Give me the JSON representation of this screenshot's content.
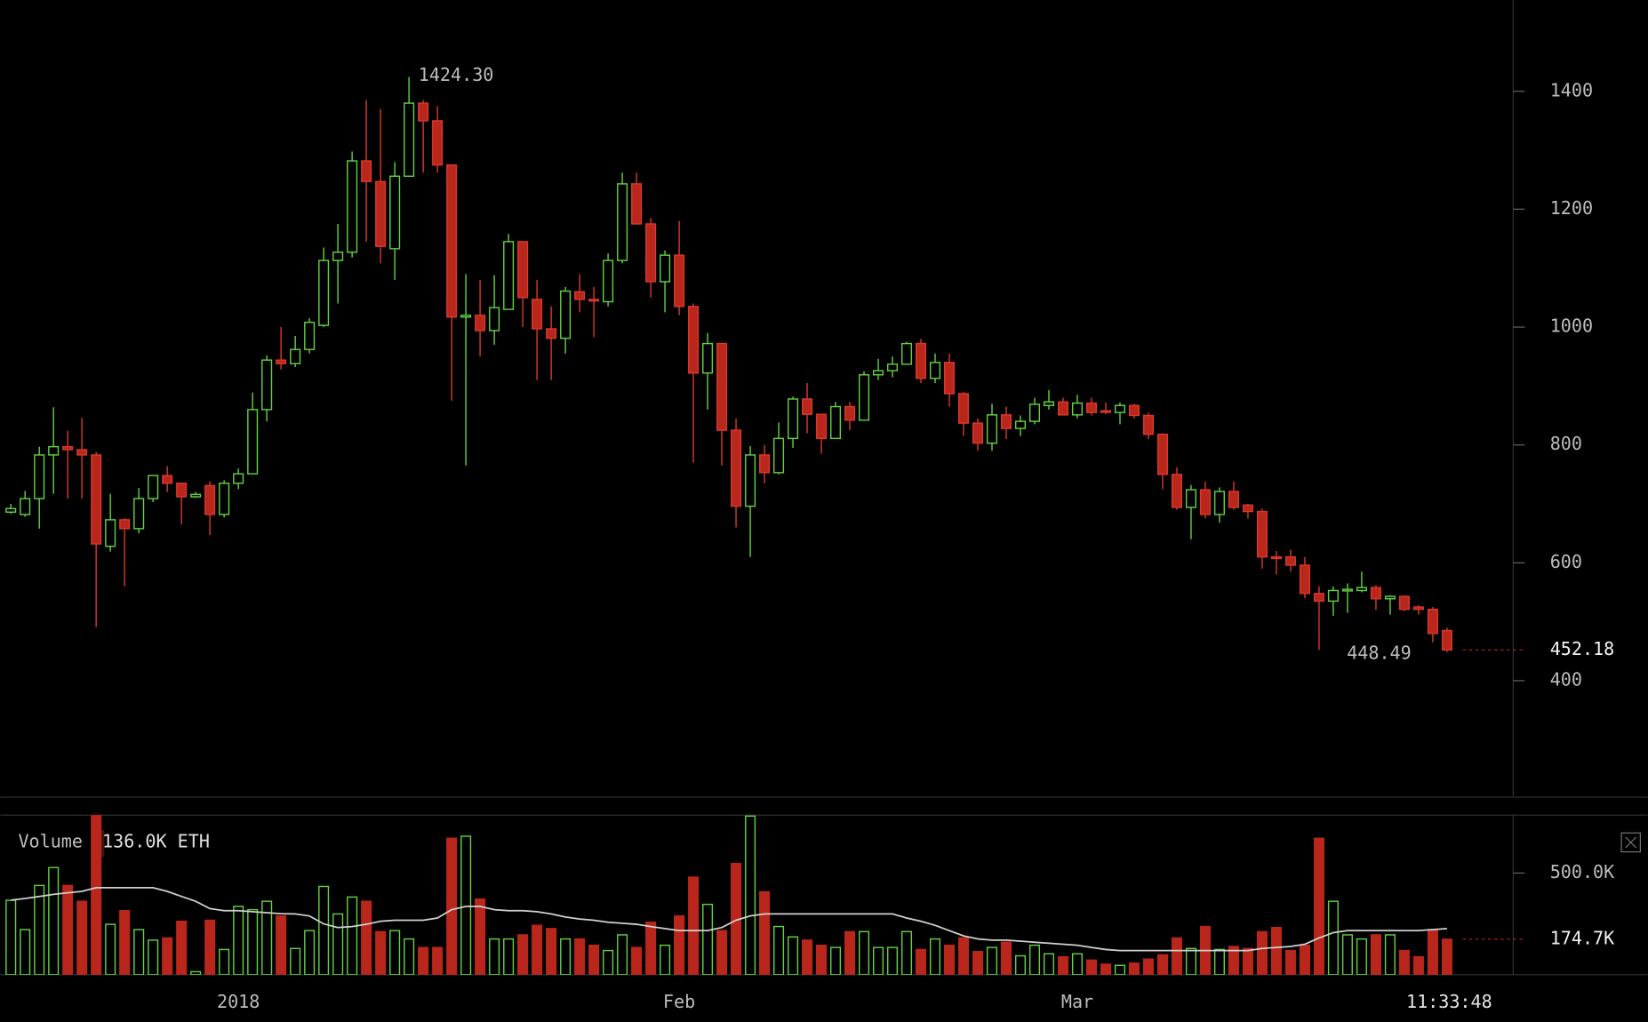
{
  "chart_data": [
    {
      "type": "candlestick",
      "categories": [
        null,
        null,
        null,
        null,
        null,
        null,
        null,
        null,
        null,
        null,
        null,
        null,
        null,
        null,
        null,
        null,
        "2018",
        null,
        null,
        null,
        null,
        null,
        null,
        null,
        null,
        null,
        null,
        null,
        null,
        null,
        null,
        null,
        null,
        null,
        null,
        null,
        null,
        null,
        null,
        null,
        null,
        null,
        null,
        null,
        null,
        null,
        null,
        "Feb",
        null,
        null,
        null,
        null,
        null,
        null,
        null,
        null,
        null,
        null,
        null,
        null,
        null,
        null,
        null,
        null,
        null,
        null,
        null,
        null,
        null,
        null,
        null,
        null,
        null,
        null,
        null,
        "Mar",
        null,
        null,
        null,
        null,
        null,
        null,
        null,
        null,
        null,
        null,
        null,
        null,
        null,
        null,
        null,
        null,
        null,
        null,
        null,
        null,
        null,
        null,
        null,
        null,
        null,
        null
      ],
      "open": [
        686,
        682,
        709,
        783,
        797,
        792,
        783,
        628,
        673,
        658,
        709,
        748,
        735,
        712,
        731,
        682,
        735,
        751,
        860,
        944,
        938,
        962,
        1003,
        1113,
        1127,
        1282,
        1247,
        1133,
        1256,
        1380,
        1350,
        1275,
        1017,
        1020,
        994,
        1030,
        1145,
        1047,
        997,
        981,
        1060,
        1047,
        1043,
        1113,
        1243,
        1175,
        1077,
        1122,
        1035,
        922,
        972,
        825,
        696,
        783,
        753,
        811,
        878,
        852,
        811,
        865,
        842,
        919,
        926,
        937,
        972,
        913,
        940,
        887,
        837,
        803,
        851,
        828,
        840,
        867,
        873,
        851,
        871,
        858,
        855,
        867,
        850,
        818,
        750,
        694,
        724,
        682,
        721,
        698,
        687,
        610,
        610,
        596,
        548,
        535,
        553,
        553,
        558,
        539,
        543,
        525,
        521,
        485
      ],
      "high": [
        700,
        722,
        797,
        864,
        824,
        846,
        788,
        717,
        676,
        727,
        748,
        764,
        735,
        720,
        738,
        740,
        760,
        889,
        952,
        1000,
        985,
        1015,
        1135,
        1175,
        1298,
        1385,
        1370,
        1280,
        1424.3,
        1385,
        1375,
        1275,
        1090,
        1080,
        1088,
        1158,
        1145,
        1080,
        1035,
        1068,
        1090,
        1068,
        1125,
        1262,
        1262,
        1185,
        1130,
        1180,
        1040,
        990,
        972,
        845,
        798,
        800,
        838,
        882,
        905,
        852,
        873,
        873,
        925,
        946,
        950,
        975,
        980,
        955,
        955,
        890,
        845,
        870,
        865,
        850,
        880,
        893,
        880,
        885,
        880,
        872,
        872,
        870,
        855,
        820,
        762,
        732,
        738,
        728,
        738,
        700,
        692,
        620,
        622,
        610,
        560,
        560,
        565,
        585,
        562,
        545,
        545,
        528,
        525,
        490
      ],
      "low": [
        683,
        678,
        658,
        717,
        709,
        709,
        491,
        619,
        560,
        650,
        703,
        720,
        665,
        710,
        647,
        677,
        725,
        751,
        840,
        928,
        932,
        955,
        1000,
        1040,
        1118,
        1145,
        1108,
        1080,
        1256,
        1262,
        1262,
        875,
        765,
        950,
        970,
        1030,
        1000,
        910,
        910,
        955,
        1025,
        983,
        1035,
        1108,
        1175,
        1050,
        1025,
        1020,
        770,
        860,
        765,
        660,
        610,
        735,
        750,
        795,
        820,
        785,
        811,
        825,
        842,
        910,
        915,
        937,
        905,
        905,
        865,
        815,
        790,
        790,
        810,
        815,
        835,
        860,
        850,
        845,
        850,
        852,
        835,
        845,
        810,
        725,
        690,
        640,
        675,
        668,
        690,
        675,
        590,
        580,
        585,
        540,
        452,
        510,
        515,
        550,
        520,
        512,
        518,
        512,
        465,
        448.49
      ],
      "close": [
        692,
        709,
        783,
        797,
        792,
        783,
        632,
        673,
        658,
        709,
        748,
        735,
        712,
        716,
        682,
        735,
        751,
        860,
        944,
        938,
        962,
        1008,
        1113,
        1127,
        1282,
        1247,
        1137,
        1256,
        1380,
        1350,
        1275,
        1017,
        1020,
        994,
        1033,
        1145,
        1050,
        997,
        981,
        1061,
        1047,
        1045,
        1113,
        1243,
        1175,
        1077,
        1122,
        1035,
        922,
        972,
        825,
        696,
        783,
        753,
        811,
        878,
        852,
        811,
        865,
        842,
        919,
        926,
        937,
        972,
        913,
        940,
        887,
        837,
        803,
        851,
        828,
        840,
        869,
        873,
        851,
        871,
        855,
        856,
        867,
        850,
        818,
        750,
        694,
        724,
        682,
        721,
        694,
        687,
        610,
        608,
        596,
        548,
        535,
        553,
        555,
        558,
        539,
        543,
        521,
        521,
        480,
        452.18
      ],
      "colors": {
        "up": "#62d243",
        "down": "#b9261b"
      },
      "ylim": [
        204,
        1555
      ],
      "yticks": [
        400,
        600,
        800,
        1000,
        1200,
        1400
      ],
      "annotations": [
        {
          "text": "1424.30",
          "value": 1424.3
        },
        {
          "text": "448.49",
          "value": 448.49
        }
      ],
      "current": {
        "value": 452.18,
        "label": "452.18"
      },
      "timestamp": "11:33:48"
    },
    {
      "type": "bar",
      "legend": {
        "name": "Volume",
        "value_text": "136.0K ETH"
      },
      "values": [
        366000,
        222000,
        439000,
        527000,
        439000,
        361000,
        785000,
        248000,
        315000,
        222000,
        170000,
        181000,
        263000,
        15000,
        268000,
        124000,
        336000,
        320000,
        361000,
        289000,
        129000,
        217000,
        434000,
        299000,
        382000,
        361000,
        212000,
        217000,
        176000,
        134000,
        134000,
        671000,
        681000,
        372000,
        176000,
        176000,
        196000,
        243000,
        227000,
        176000,
        176000,
        145000,
        119000,
        196000,
        134000,
        258000,
        145000,
        289000,
        480000,
        346000,
        217000,
        547000,
        780000,
        408000,
        237000,
        186000,
        170000,
        145000,
        134000,
        212000,
        212000,
        134000,
        134000,
        212000,
        124000,
        176000,
        145000,
        181000,
        114000,
        134000,
        160000,
        93000,
        145000,
        103000,
        88000,
        103000,
        72000,
        52000,
        46000,
        57000,
        77000,
        98000,
        181000,
        129000,
        237000,
        124000,
        139000,
        129000,
        212000,
        232000,
        119000,
        145000,
        671000,
        361000,
        196000,
        176000,
        196000,
        196000,
        119000,
        88000,
        222000,
        174700
      ],
      "ma": {
        "color": "#d0d0d0",
        "values": [
          367000,
          375000,
          385000,
          395000,
          403000,
          410000,
          428000,
          428000,
          428000,
          428000,
          428000,
          410000,
          385000,
          361000,
          325000,
          315000,
          315000,
          310000,
          305000,
          300000,
          299000,
          289000,
          250000,
          232000,
          237000,
          248000,
          263000,
          268000,
          268000,
          268000,
          279000,
          320000,
          336000,
          336000,
          320000,
          315000,
          315000,
          310000,
          299000,
          284000,
          274000,
          268000,
          258000,
          253000,
          248000,
          237000,
          227000,
          217000,
          217000,
          217000,
          232000,
          268000,
          289000,
          299000,
          299000,
          299000,
          299000,
          299000,
          299000,
          299000,
          299000,
          299000,
          299000,
          279000,
          263000,
          243000,
          217000,
          191000,
          176000,
          170000,
          170000,
          165000,
          160000,
          155000,
          150000,
          145000,
          134000,
          124000,
          119000,
          119000,
          119000,
          119000,
          119000,
          119000,
          119000,
          119000,
          119000,
          119000,
          129000,
          134000,
          139000,
          150000,
          181000,
          207000,
          217000,
          217000,
          217000,
          217000,
          217000,
          217000,
          222000,
          227000
        ]
      },
      "ylim": [
        0,
        785000
      ],
      "yticks": [
        {
          "value": 500000,
          "label": "500.0K"
        }
      ],
      "current": {
        "value": 174700,
        "label": "174.7K"
      }
    }
  ]
}
